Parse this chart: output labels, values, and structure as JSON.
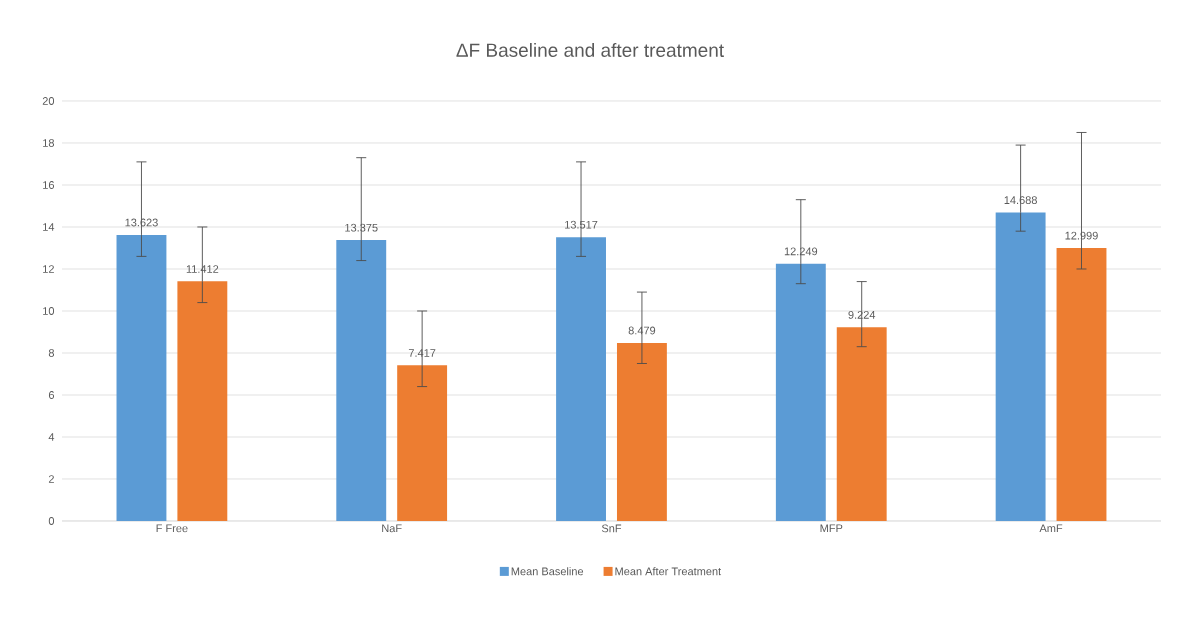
{
  "chart_data": {
    "type": "bar",
    "title": "ΔF Baseline and after treatment",
    "categories": [
      "F Free",
      "NaF",
      "SnF",
      "MFP",
      "AmF"
    ],
    "series": [
      {
        "name": "Mean Baseline",
        "color": "#5b9bd5",
        "values": [
          13.623,
          13.375,
          13.517,
          12.249,
          14.688
        ],
        "errors": [
          [
            12.6,
            17.1
          ],
          [
            12.4,
            17.3
          ],
          [
            12.6,
            17.1
          ],
          [
            11.3,
            15.3
          ],
          [
            13.8,
            17.9
          ]
        ]
      },
      {
        "name": "Mean After Treatment",
        "color": "#ed7d31",
        "values": [
          11.412,
          7.417,
          8.479,
          9.224,
          12.999
        ],
        "errors": [
          [
            10.4,
            14.0
          ],
          [
            6.4,
            10.0
          ],
          [
            7.5,
            10.9
          ],
          [
            8.3,
            11.4
          ],
          [
            12.0,
            18.5
          ]
        ]
      }
    ],
    "ylim": [
      0,
      20
    ],
    "yticks": [
      0,
      2,
      4,
      6,
      8,
      10,
      12,
      14,
      16,
      18,
      20
    ],
    "grid": "y",
    "legend": "bottom",
    "data_labels": true
  }
}
